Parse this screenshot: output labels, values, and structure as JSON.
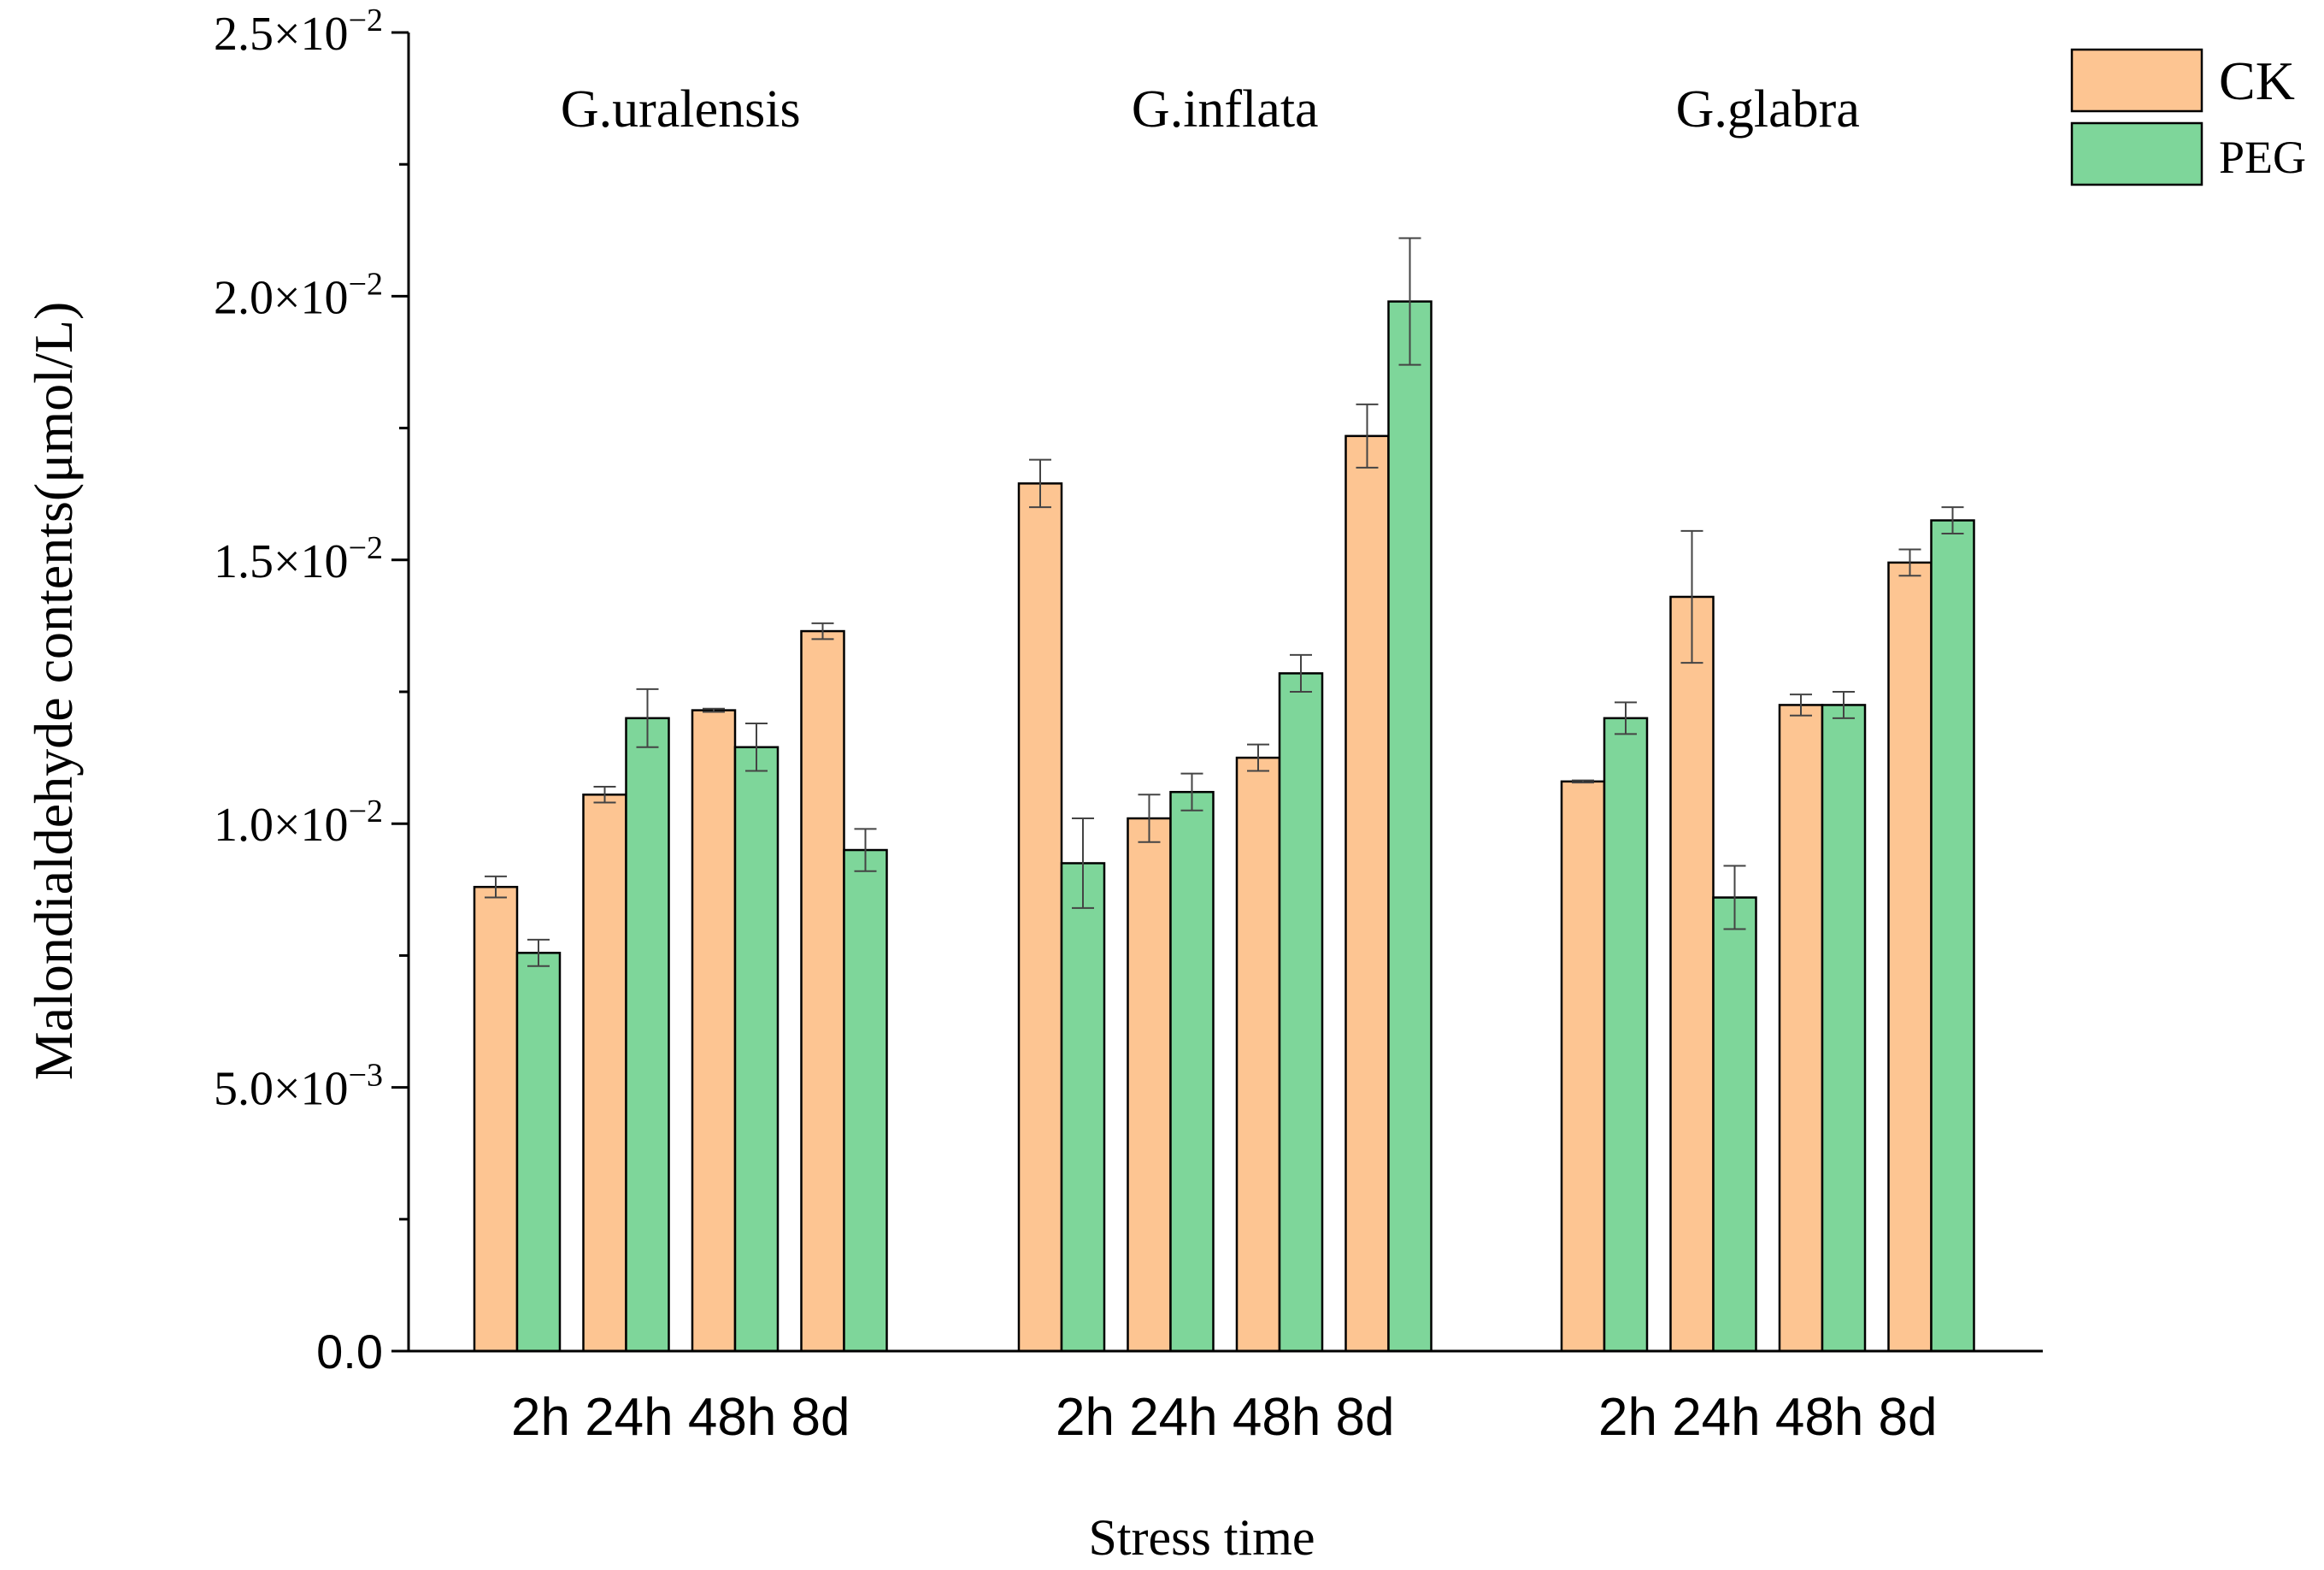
{
  "chart_data": {
    "type": "bar",
    "xlabel": "Stress time",
    "ylabel": "Malondialdehyde contents(μmol/L)",
    "ylim": [
      0,
      0.025
    ],
    "y_ticks": [
      {
        "value": 0,
        "label": "0.0",
        "mant": "",
        "exp": ""
      },
      {
        "value": 0.005,
        "label": "5.0×10⁻³",
        "mant": "5.0×10",
        "exp": "−3"
      },
      {
        "value": 0.01,
        "label": "1.0×10⁻²",
        "mant": "1.0×10",
        "exp": "−2"
      },
      {
        "value": 0.015,
        "label": "1.5×10⁻²",
        "mant": "1.5×10",
        "exp": "−2"
      },
      {
        "value": 0.02,
        "label": "2.0×10⁻²",
        "mant": "2.0×10",
        "exp": "−2"
      },
      {
        "value": 0.025,
        "label": "2.5×10⁻²",
        "mant": "2.5×10",
        "exp": "−2"
      }
    ],
    "legend_position": "top-right",
    "series": [
      {
        "name": "CK",
        "color": "#FDC592"
      },
      {
        "name": "PEG",
        "color": "#7ED69A"
      }
    ],
    "groups": [
      {
        "name": "G.uralensis",
        "categories": [
          "2h",
          "24h",
          "48h",
          "8d"
        ],
        "category_label": "2h 24h 48h 8d",
        "CK": [
          0.0088,
          0.01055,
          0.01215,
          0.01365
        ],
        "CK_err": [
          0.0002,
          0.00015,
          3e-05,
          0.00015
        ],
        "PEG": [
          0.00755,
          0.012,
          0.01145,
          0.0095
        ],
        "PEG_err": [
          0.00025,
          0.00055,
          0.00045,
          0.0004
        ]
      },
      {
        "name": "G.inflata",
        "categories": [
          "2h",
          "24h",
          "48h",
          "8d"
        ],
        "category_label": "2h 24h 48h 8d",
        "CK": [
          0.01645,
          0.0101,
          0.01125,
          0.01735
        ],
        "CK_err": [
          0.00045,
          0.00045,
          0.00025,
          0.0006
        ],
        "PEG": [
          0.00925,
          0.0106,
          0.01285,
          0.0199
        ],
        "PEG_err": [
          0.00085,
          0.00035,
          0.00035,
          0.0012
        ]
      },
      {
        "name": "G.glabra",
        "categories": [
          "2h",
          "24h",
          "48h",
          "8d"
        ],
        "category_label": "2h 24h 48h 8d",
        "CK": [
          0.0108,
          0.0143,
          0.01225,
          0.01495
        ],
        "CK_err": [
          2e-05,
          0.00125,
          0.0002,
          0.00025
        ],
        "PEG": [
          0.012,
          0.0086,
          0.01225,
          0.01575
        ],
        "PEG_err": [
          0.0003,
          0.0006,
          0.00025,
          0.00025
        ]
      }
    ]
  }
}
